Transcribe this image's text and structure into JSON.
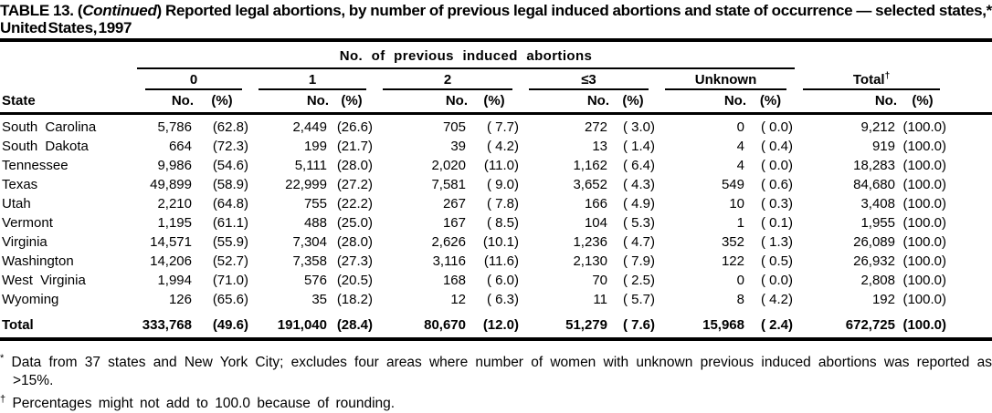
{
  "title": {
    "prefix": "TABLE 13. (",
    "continued": "Continued",
    "suffix": ") Reported legal abortions, by number of previous legal induced abortions and state of occurrence — selected states,* United States, 1997"
  },
  "table": {
    "state_header": "State",
    "spanner": "No. of previous induced abortions",
    "groups": [
      {
        "label": "0"
      },
      {
        "label": "1"
      },
      {
        "label": "2"
      },
      {
        "label": "≤3"
      },
      {
        "label": "Unknown"
      },
      {
        "label": "Total",
        "marker": "†"
      }
    ],
    "subheaders": {
      "no": "No.",
      "pct": "(%)"
    },
    "rows": [
      {
        "state": "South Carolina",
        "values": [
          "5,786",
          "(62.8)",
          "2,449",
          "(26.6)",
          "705",
          "( 7.7)",
          "272",
          "( 3.0)",
          "0",
          "( 0.0)",
          "9,212",
          "(100.0)"
        ]
      },
      {
        "state": "South Dakota",
        "values": [
          "664",
          "(72.3)",
          "199",
          "(21.7)",
          "39",
          "( 4.2)",
          "13",
          "( 1.4)",
          "4",
          "( 0.4)",
          "919",
          "(100.0)"
        ]
      },
      {
        "state": "Tennessee",
        "values": [
          "9,986",
          "(54.6)",
          "5,111",
          "(28.0)",
          "2,020",
          "(11.0)",
          "1,162",
          "( 6.4)",
          "4",
          "( 0.0)",
          "18,283",
          "(100.0)"
        ]
      },
      {
        "state": "Texas",
        "values": [
          "49,899",
          "(58.9)",
          "22,999",
          "(27.2)",
          "7,581",
          "( 9.0)",
          "3,652",
          "( 4.3)",
          "549",
          "( 0.6)",
          "84,680",
          "(100.0)"
        ]
      },
      {
        "state": "Utah",
        "values": [
          "2,210",
          "(64.8)",
          "755",
          "(22.2)",
          "267",
          "( 7.8)",
          "166",
          "( 4.9)",
          "10",
          "( 0.3)",
          "3,408",
          "(100.0)"
        ]
      },
      {
        "state": "Vermont",
        "values": [
          "1,195",
          "(61.1)",
          "488",
          "(25.0)",
          "167",
          "( 8.5)",
          "104",
          "( 5.3)",
          "1",
          "( 0.1)",
          "1,955",
          "(100.0)"
        ]
      },
      {
        "state": "Virginia",
        "values": [
          "14,571",
          "(55.9)",
          "7,304",
          "(28.0)",
          "2,626",
          "(10.1)",
          "1,236",
          "( 4.7)",
          "352",
          "( 1.3)",
          "26,089",
          "(100.0)"
        ]
      },
      {
        "state": "Washington",
        "values": [
          "14,206",
          "(52.7)",
          "7,358",
          "(27.3)",
          "3,116",
          "(11.6)",
          "2,130",
          "( 7.9)",
          "122",
          "( 0.5)",
          "26,932",
          "(100.0)"
        ]
      },
      {
        "state": "West Virginia",
        "values": [
          "1,994",
          "(71.0)",
          "576",
          "(20.5)",
          "168",
          "( 6.0)",
          "70",
          "( 2.5)",
          "0",
          "( 0.0)",
          "2,808",
          "(100.0)"
        ]
      },
      {
        "state": "Wyoming",
        "values": [
          "126",
          "(65.6)",
          "35",
          "(18.2)",
          "12",
          "( 6.3)",
          "11",
          "( 5.7)",
          "8",
          "( 4.2)",
          "192",
          "(100.0)"
        ]
      },
      {
        "state": "Total",
        "total": true,
        "values": [
          "333,768",
          "(49.6)",
          "191,040",
          "(28.4)",
          "80,670",
          "(12.0)",
          "51,279",
          "( 7.6)",
          "15,968",
          "( 2.4)",
          "672,725",
          "(100.0)"
        ]
      }
    ]
  },
  "footnotes": [
    {
      "marker": "*",
      "text": "Data from 37 states and New York City; excludes four areas where number of women with unknown previous induced abortions was reported as >15%."
    },
    {
      "marker": "†",
      "text": "Percentages might not add to 100.0 because of rounding."
    }
  ]
}
